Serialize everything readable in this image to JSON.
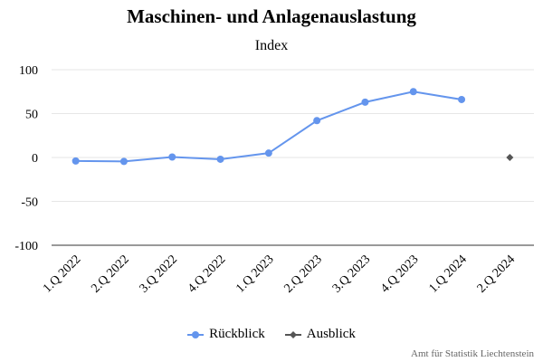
{
  "chart_data": {
    "type": "line",
    "title": "Maschinen- und Anlagenauslastung",
    "subtitle": "Index",
    "categories": [
      "1.Q 2022",
      "2.Q 2022",
      "3.Q 2022",
      "4.Q 2022",
      "1.Q 2023",
      "2.Q 2023",
      "3.Q 2023",
      "4.Q 2023",
      "1.Q 2024",
      "2.Q 2024"
    ],
    "ylim": [
      -100,
      100
    ],
    "yticks": [
      100,
      50,
      0,
      -50,
      -100
    ],
    "grid": true,
    "legend_position": "bottom",
    "series": [
      {
        "name": "Rückblick",
        "color": "#6495ed",
        "marker": "circle",
        "values": [
          -4,
          -4.5,
          0.5,
          -2,
          5,
          42,
          63,
          75,
          66,
          null
        ]
      },
      {
        "name": "Ausblick",
        "color": "#555555",
        "marker": "diamond",
        "values": [
          null,
          null,
          null,
          null,
          null,
          null,
          null,
          null,
          null,
          0
        ]
      }
    ]
  },
  "credits": "Amt für Statistik Liechtenstein"
}
